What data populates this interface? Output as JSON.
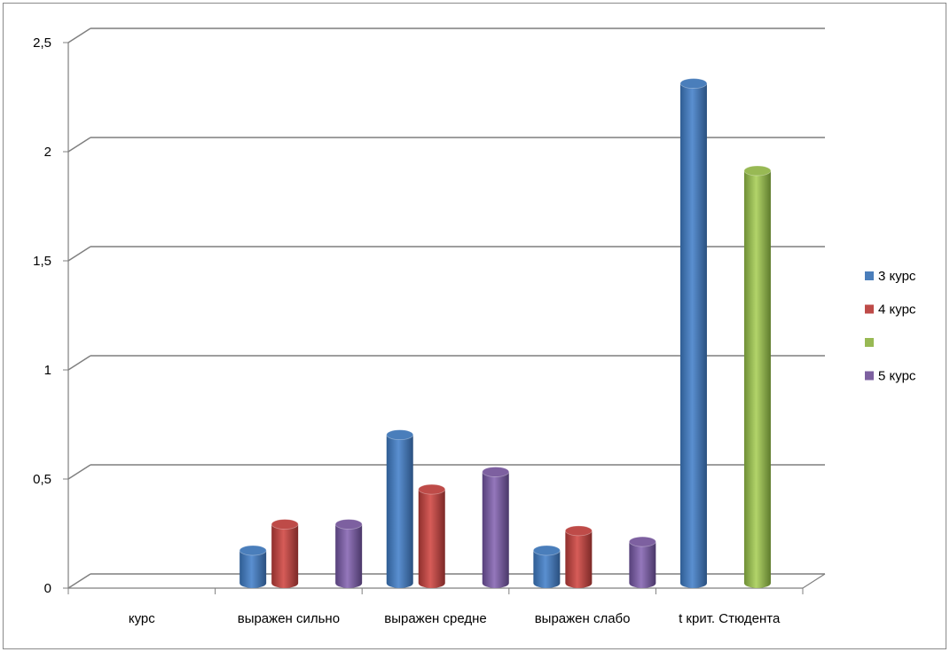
{
  "chart_data": {
    "type": "bar",
    "style": "3d-cylinder",
    "categories": [
      "курс",
      "выражен сильно",
      "выражен средне",
      "выражен слабо",
      "t крит. Стюдента"
    ],
    "series": [
      {
        "name": "3 курс",
        "color": "#4a7ebb",
        "values": [
          null,
          0.15,
          0.68,
          0.15,
          2.29
        ]
      },
      {
        "name": "4 курс",
        "color": "#be4b48",
        "values": [
          null,
          0.27,
          0.43,
          0.24,
          null
        ]
      },
      {
        "name": "",
        "color": "#98b954",
        "values": [
          null,
          null,
          null,
          null,
          1.89
        ]
      },
      {
        "name": "5 курс",
        "color": "#7d60a0",
        "values": [
          null,
          0.27,
          0.51,
          0.19,
          null
        ]
      }
    ],
    "yticks": [
      "0",
      "0,5",
      "1",
      "1,5",
      "2",
      "2,5"
    ],
    "ylim": [
      0,
      2.5
    ],
    "grid": true,
    "legend_position": "right"
  }
}
